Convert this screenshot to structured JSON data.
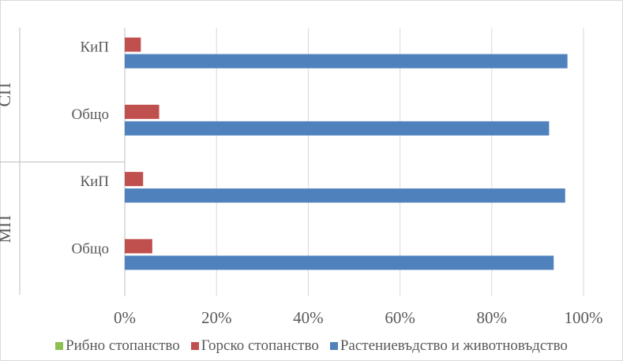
{
  "chart_data": {
    "type": "bar",
    "orientation": "horizontal",
    "groups": [
      {
        "label": "СП",
        "categories": [
          "КиП",
          "Общо"
        ]
      },
      {
        "label": "МП",
        "categories": [
          "КиП",
          "Общо"
        ]
      }
    ],
    "series": [
      {
        "name": "Рибно стопанство",
        "color": "#8cc152",
        "values": {
          "СП": {
            "КиП": 0,
            "Общо": 0
          },
          "МП": {
            "КиП": 0,
            "Общо": 0.5
          }
        }
      },
      {
        "name": "Горско стопанство",
        "color": "#c0504d",
        "values": {
          "СП": {
            "КиП": 3.5,
            "Общо": 7.5
          },
          "МП": {
            "КиП": 4,
            "Общо": 6
          }
        }
      },
      {
        "name": "Растениевъдство и животновъдство",
        "color": "#4f81bd",
        "values": {
          "СП": {
            "КиП": 96.5,
            "Общо": 92.5
          },
          "МП": {
            "КиП": 96,
            "Общо": 93.5
          }
        }
      }
    ],
    "xaxis": {
      "ticks": [
        "0%",
        "20%",
        "40%",
        "60%",
        "80%",
        "100%"
      ],
      "range": [
        0,
        100
      ],
      "unit": "%"
    },
    "grid": true,
    "legend_position": "bottom"
  }
}
